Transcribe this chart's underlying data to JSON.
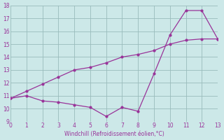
{
  "xlabel": "Windchill (Refroidissement éolien,°C)",
  "x_data": [
    0,
    1,
    2,
    3,
    4,
    5,
    6,
    7,
    8,
    9,
    10,
    11,
    12,
    13
  ],
  "y_zigzag": [
    10.8,
    11.0,
    10.6,
    10.5,
    10.3,
    10.1,
    9.4,
    10.1,
    9.8,
    12.7,
    15.7,
    17.6,
    17.6,
    15.4
  ],
  "y_trend": [
    10.8,
    11.35,
    11.9,
    12.45,
    13.0,
    13.2,
    13.55,
    14.0,
    14.2,
    14.5,
    15.0,
    15.3,
    15.4,
    15.4
  ],
  "line_color": "#993399",
  "bg_color": "#cce8e8",
  "grid_color": "#99bbbb",
  "ylim": [
    9,
    18
  ],
  "xlim": [
    0,
    13
  ],
  "yticks": [
    9,
    10,
    11,
    12,
    13,
    14,
    15,
    16,
    17,
    18
  ],
  "xticks": [
    0,
    1,
    2,
    3,
    4,
    5,
    6,
    7,
    8,
    9,
    10,
    11,
    12,
    13
  ]
}
